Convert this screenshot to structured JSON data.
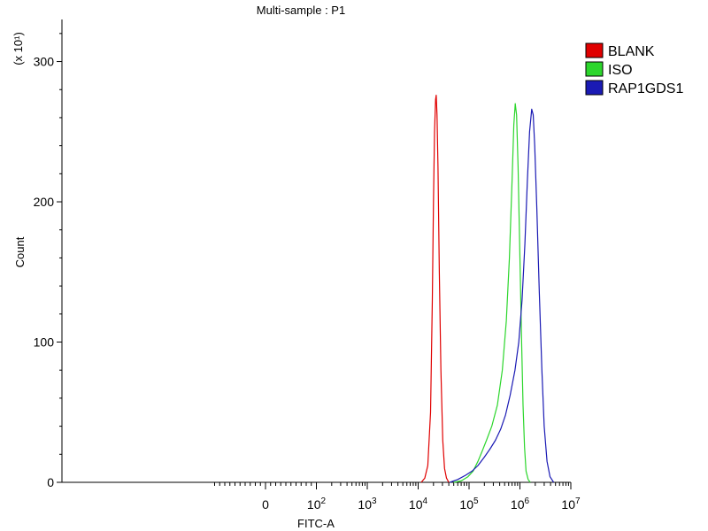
{
  "chart_data": {
    "type": "line",
    "title": "Multi-sample : P1",
    "xlabel": "FITC-A",
    "ylabel": "Count",
    "y_multiplier_label": "(x 10¹)",
    "x_scale": "biexponential",
    "xlim": [
      -400,
      10000000
    ],
    "ylim": [
      0,
      330
    ],
    "x_ticks": [
      {
        "value": 0,
        "base": "0",
        "exp": ""
      },
      {
        "value": 100,
        "base": "10",
        "exp": "2"
      },
      {
        "value": 1000,
        "base": "10",
        "exp": "3"
      },
      {
        "value": 10000,
        "base": "10",
        "exp": "4"
      },
      {
        "value": 100000,
        "base": "10",
        "exp": "5"
      },
      {
        "value": 1000000,
        "base": "10",
        "exp": "6"
      },
      {
        "value": 10000000,
        "base": "10",
        "exp": "7"
      }
    ],
    "y_ticks": [
      0,
      100,
      200,
      300
    ],
    "legend_position": "top-right",
    "series": [
      {
        "name": "BLANK",
        "color": "#e00000",
        "points": [
          [
            11500,
            0
          ],
          [
            13500,
            3
          ],
          [
            15500,
            12
          ],
          [
            17500,
            50
          ],
          [
            19000,
            130
          ],
          [
            20000,
            200
          ],
          [
            21000,
            250
          ],
          [
            22000,
            273
          ],
          [
            22600,
            276
          ],
          [
            23500,
            262
          ],
          [
            24500,
            225
          ],
          [
            26000,
            150
          ],
          [
            28000,
            80
          ],
          [
            30500,
            30
          ],
          [
            33000,
            10
          ],
          [
            36000,
            3
          ],
          [
            40000,
            0
          ]
        ]
      },
      {
        "name": "ISO",
        "color": "#2cd62c",
        "points": [
          [
            50000,
            0
          ],
          [
            70000,
            1
          ],
          [
            95000,
            4
          ],
          [
            120000,
            8
          ],
          [
            150000,
            15
          ],
          [
            180000,
            22
          ],
          [
            220000,
            30
          ],
          [
            280000,
            40
          ],
          [
            360000,
            55
          ],
          [
            450000,
            80
          ],
          [
            540000,
            115
          ],
          [
            620000,
            160
          ],
          [
            700000,
            215
          ],
          [
            760000,
            255
          ],
          [
            810000,
            270
          ],
          [
            860000,
            262
          ],
          [
            920000,
            225
          ],
          [
            1000000,
            160
          ],
          [
            1080000,
            100
          ],
          [
            1150000,
            55
          ],
          [
            1230000,
            25
          ],
          [
            1320000,
            8
          ],
          [
            1450000,
            2
          ],
          [
            1600000,
            0
          ]
        ]
      },
      {
        "name": "RAP1GDS1",
        "color": "#1a1ab4",
        "points": [
          [
            42000,
            0
          ],
          [
            60000,
            2
          ],
          [
            85000,
            5
          ],
          [
            115000,
            8
          ],
          [
            150000,
            12
          ],
          [
            200000,
            18
          ],
          [
            260000,
            24
          ],
          [
            330000,
            30
          ],
          [
            420000,
            38
          ],
          [
            520000,
            48
          ],
          [
            640000,
            62
          ],
          [
            800000,
            80
          ],
          [
            950000,
            100
          ],
          [
            1100000,
            130
          ],
          [
            1250000,
            170
          ],
          [
            1400000,
            215
          ],
          [
            1550000,
            250
          ],
          [
            1700000,
            266
          ],
          [
            1820000,
            262
          ],
          [
            1950000,
            240
          ],
          [
            2150000,
            195
          ],
          [
            2400000,
            135
          ],
          [
            2700000,
            80
          ],
          [
            3000000,
            40
          ],
          [
            3400000,
            15
          ],
          [
            3900000,
            4
          ],
          [
            4600000,
            0
          ]
        ]
      }
    ]
  }
}
